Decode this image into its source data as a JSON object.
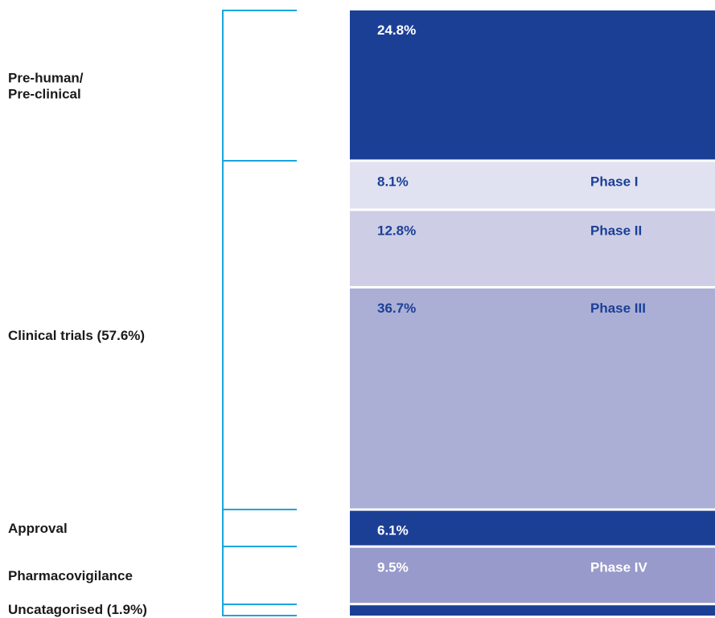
{
  "chart_data": {
    "type": "bar",
    "orientation": "stacked-vertical",
    "segments": [
      {
        "value": 24.8,
        "label": "24.8%",
        "phase": "",
        "color": "#1c3f96",
        "text_color": "#ffffff"
      },
      {
        "value": 8.1,
        "label": "8.1%",
        "phase": "Phase I",
        "color": "#e1e2f1",
        "text_color": "#1c3f96"
      },
      {
        "value": 12.8,
        "label": "12.8%",
        "phase": "Phase II",
        "color": "#cdcee6",
        "text_color": "#1c3f96"
      },
      {
        "value": 36.7,
        "label": "36.7%",
        "phase": "Phase III",
        "color": "#abafd6",
        "text_color": "#1c3f96"
      },
      {
        "value": 6.1,
        "label": "6.1%",
        "phase": "",
        "color": "#1c3f96",
        "text_color": "#ffffff"
      },
      {
        "value": 9.5,
        "label": "9.5%",
        "phase": "Phase IV",
        "color": "#979acb",
        "text_color": "#ffffff"
      },
      {
        "value": 1.9,
        "label": "",
        "phase": "",
        "color": "#1c3f96",
        "text_color": "#ffffff"
      }
    ],
    "categories": [
      {
        "lines": [
          "Pre-human/",
          "Pre-clinical"
        ],
        "segments": [
          0
        ]
      },
      {
        "lines": [
          "Clinical trials (57.6%)"
        ],
        "segments": [
          1,
          2,
          3
        ]
      },
      {
        "lines": [
          "Approval"
        ],
        "segments": [
          4
        ]
      },
      {
        "lines": [
          "Pharmacovigilance"
        ],
        "segments": [
          5
        ]
      },
      {
        "lines": [
          "Uncatagorised (1.9%)"
        ],
        "segments": [
          6
        ]
      }
    ],
    "bracket_color": "#1aa5dd",
    "segment_divider_color": "#ffffff"
  }
}
